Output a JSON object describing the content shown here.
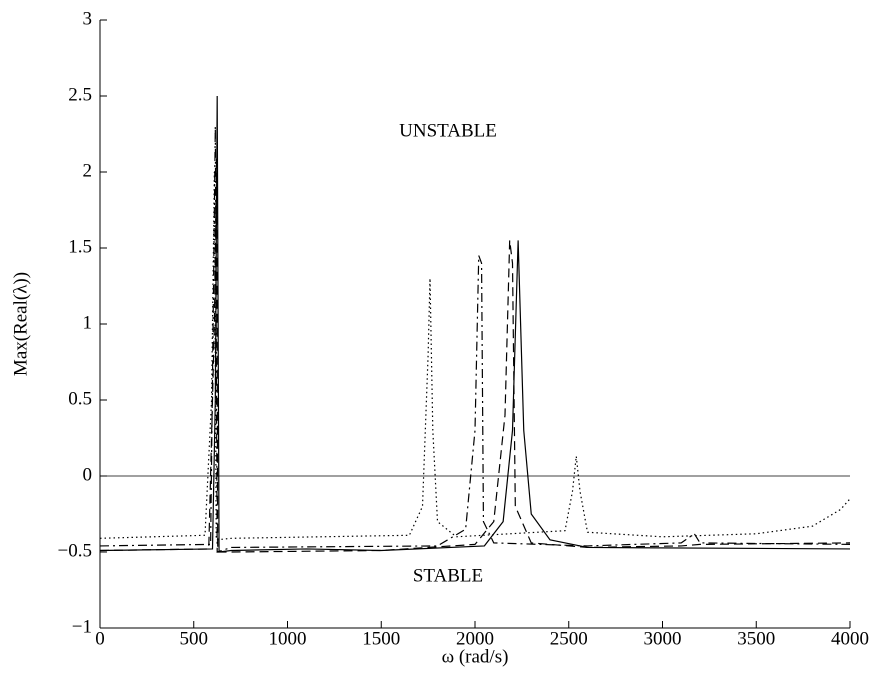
{
  "chart_data": {
    "type": "line",
    "xlabel": "ω (rad/s)",
    "ylabel": "Max(Real(λ))",
    "annotations": [
      "UNSTABLE",
      "STABLE"
    ],
    "xlim": [
      0,
      4000
    ],
    "xticks": [
      0,
      500,
      1000,
      1500,
      2000,
      2500,
      3000,
      3500,
      4000
    ],
    "ylim": [
      -1,
      3
    ],
    "yticks": [
      {
        "value": -1,
        "label": "−1"
      },
      {
        "value": -0.5,
        "label": "−0.5"
      },
      0,
      0.5,
      1,
      1.5,
      2,
      2.5,
      3
    ],
    "hlines": [
      0
    ],
    "series": [
      {
        "color": "#000000",
        "dash": "solid",
        "x": [
          0,
          600,
          615,
          625,
          635,
          700,
          1100,
          1500,
          2050,
          2150,
          2200,
          2230,
          2260,
          2300,
          2400,
          2600,
          4000
        ],
        "values": [
          -0.49,
          -0.48,
          0.5,
          2.5,
          -0.5,
          -0.49,
          -0.48,
          -0.49,
          -0.46,
          -0.3,
          0.3,
          1.55,
          0.3,
          -0.25,
          -0.42,
          -0.47,
          -0.48
        ]
      },
      {
        "color": "#000000",
        "dash": "dashed",
        "x": [
          0,
          580,
          610,
          622,
          628,
          700,
          1500,
          2000,
          2100,
          2160,
          2185,
          2200,
          2215,
          2300,
          2600,
          3100,
          3200,
          4000
        ],
        "values": [
          -0.49,
          -0.48,
          1.0,
          2.1,
          -0.5,
          -0.5,
          -0.49,
          -0.45,
          -0.3,
          0.4,
          1.55,
          1.4,
          -0.2,
          -0.44,
          -0.47,
          -0.46,
          -0.45,
          -0.44
        ]
      },
      {
        "color": "#000000",
        "dash": "dashdot",
        "x": [
          0,
          590,
          615,
          625,
          700,
          1800,
          1950,
          2000,
          2020,
          2035,
          2045,
          2100,
          2600,
          3100,
          3170,
          3200,
          4000
        ],
        "values": [
          -0.46,
          -0.45,
          2.3,
          -0.5,
          -0.47,
          -0.46,
          -0.35,
          0.3,
          1.45,
          1.4,
          -0.3,
          -0.44,
          -0.46,
          -0.44,
          -0.38,
          -0.44,
          -0.45
        ]
      },
      {
        "color": "#000000",
        "dash": "dotted",
        "x": [
          0,
          560,
          595,
          610,
          620,
          700,
          1650,
          1720,
          1750,
          1760,
          1775,
          1800,
          1900,
          2480,
          2520,
          2540,
          2560,
          2600,
          3000,
          3500,
          3800,
          3950,
          4000
        ],
        "values": [
          -0.41,
          -0.39,
          0.5,
          2.0,
          -0.42,
          -0.41,
          -0.39,
          -0.2,
          0.8,
          1.3,
          0.3,
          -0.3,
          -0.4,
          -0.36,
          -0.1,
          0.13,
          -0.1,
          -0.37,
          -0.4,
          -0.38,
          -0.33,
          -0.22,
          -0.15
        ]
      }
    ]
  }
}
